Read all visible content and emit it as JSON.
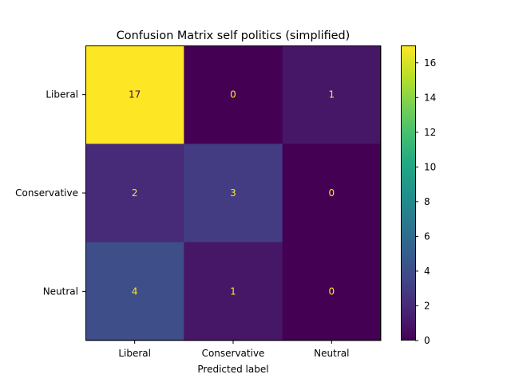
{
  "chart_data": {
    "type": "heatmap",
    "title": "Confusion Matrix self politics (simplified)",
    "xlabel": "Predicted label",
    "ylabel": "",
    "x_categories": [
      "Liberal",
      "Conservative",
      "Neutral"
    ],
    "y_categories": [
      "Liberal",
      "Conservative",
      "Neutral"
    ],
    "values": [
      [
        17,
        0,
        1
      ],
      [
        2,
        3,
        0
      ],
      [
        4,
        1,
        0
      ]
    ],
    "colorbar": {
      "min": 0,
      "max": 17,
      "ticks": [
        0,
        2,
        4,
        6,
        8,
        10,
        12,
        14,
        16
      ],
      "colormap": "viridis"
    },
    "grid": false
  }
}
